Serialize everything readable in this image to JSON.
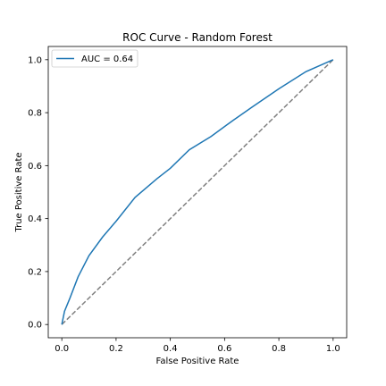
{
  "chart_data": {
    "type": "line",
    "title": "ROC Curve - Random Forest",
    "xlabel": "False Positive Rate",
    "ylabel": "True Positive Rate",
    "xlim": [
      -0.05,
      1.05
    ],
    "ylim": [
      -0.05,
      1.05
    ],
    "xticks": [
      0.0,
      0.2,
      0.4,
      0.6,
      0.8,
      1.0
    ],
    "yticks": [
      0.0,
      0.2,
      0.4,
      0.6,
      0.8,
      1.0
    ],
    "xtick_labels": [
      "0.0",
      "0.2",
      "0.4",
      "0.6",
      "0.8",
      "1.0"
    ],
    "ytick_labels": [
      "0.0",
      "0.2",
      "0.4",
      "0.6",
      "0.8",
      "1.0"
    ],
    "grid": false,
    "legend_position": "top-left",
    "series": [
      {
        "name": "AUC = 0.64",
        "color": "#1f77b4",
        "style": "solid",
        "x": [
          0.0,
          0.01,
          0.03,
          0.06,
          0.1,
          0.15,
          0.2,
          0.27,
          0.35,
          0.4,
          0.47,
          0.55,
          0.63,
          0.7,
          0.8,
          0.9,
          1.0
        ],
        "y": [
          0.0,
          0.05,
          0.1,
          0.18,
          0.26,
          0.33,
          0.39,
          0.48,
          0.55,
          0.59,
          0.66,
          0.71,
          0.77,
          0.82,
          0.89,
          0.955,
          1.0
        ]
      },
      {
        "color": "#808080",
        "style": "dashed",
        "x": [
          0.0,
          1.0
        ],
        "y": [
          0.0,
          1.0
        ]
      }
    ]
  }
}
